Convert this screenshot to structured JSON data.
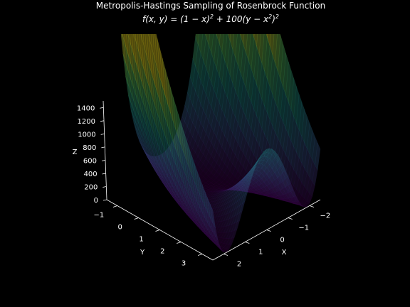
{
  "chart_data": {
    "type": "surface3d",
    "title": "Metropolis-Hastings Sampling of Rosenbrock Function",
    "subtitle": {
      "prefix": "f(x, y) = (1 − x)",
      "exp1": "2",
      "middle": " + 100(y − x",
      "exp2": "2",
      "suffix": ")",
      "exp3": "2"
    },
    "xlabel": "X",
    "ylabel": "Y",
    "zlabel": "Z",
    "x_ticks": [
      -2,
      -1,
      0,
      1,
      2
    ],
    "y_ticks": [
      -1,
      0,
      1,
      2,
      3
    ],
    "z_ticks": [
      0,
      200,
      400,
      600,
      800,
      1000,
      1200,
      1400
    ],
    "xlim": [
      -2.5,
      2.5
    ],
    "ylim": [
      -1.5,
      3.5
    ],
    "zlim": [
      0,
      1500
    ],
    "function": "(1 - x)^2 + 100*(y - x^2)^2",
    "colormap": "viridis",
    "background": "#000000",
    "axis_color": "#ffffff"
  }
}
